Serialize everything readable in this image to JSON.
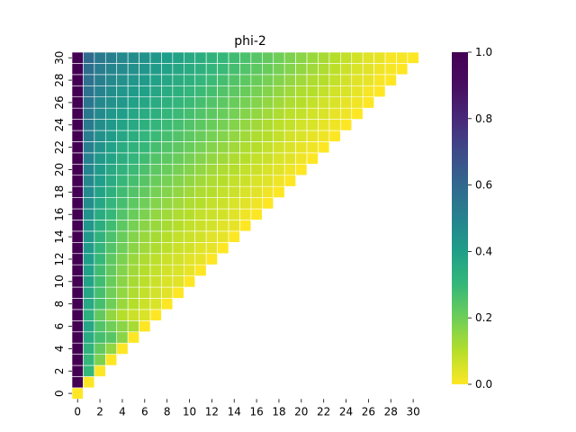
{
  "chart_data": {
    "type": "heatmap",
    "title": "phi-2",
    "xlabel": "",
    "ylabel": "",
    "n": 31,
    "x_tick_labels": [
      "0",
      "2",
      "4",
      "6",
      "8",
      "10",
      "12",
      "14",
      "16",
      "18",
      "20",
      "22",
      "24",
      "26",
      "28",
      "30"
    ],
    "y_tick_labels": [
      "0",
      "2",
      "4",
      "6",
      "8",
      "10",
      "12",
      "14",
      "16",
      "18",
      "20",
      "22",
      "24",
      "26",
      "28",
      "30"
    ],
    "colormap": "viridis_r",
    "vmin": 0.0,
    "vmax": 1.0,
    "colorbar_tick_labels": [
      "0.0",
      "0.2",
      "0.4",
      "0.6",
      "0.8",
      "1.0"
    ],
    "mask": "upper-triangle (cell shown only when column <= row)",
    "rows": [
      [
        0.0
      ],
      [
        1.0,
        0.0
      ],
      [
        1.0,
        0.3,
        0.0
      ],
      [
        1.0,
        0.3,
        0.18,
        0.0
      ],
      [
        1.0,
        0.32,
        0.22,
        0.15,
        0.0
      ],
      [
        1.0,
        0.35,
        0.27,
        0.24,
        0.16,
        0.0
      ],
      [
        1.0,
        0.37,
        0.25,
        0.2,
        0.16,
        0.12,
        0.0
      ],
      [
        1.0,
        0.33,
        0.22,
        0.15,
        0.1,
        0.07,
        0.05,
        0.0
      ],
      [
        1.0,
        0.36,
        0.27,
        0.2,
        0.14,
        0.1,
        0.07,
        0.05,
        0.0
      ],
      [
        1.0,
        0.37,
        0.27,
        0.2,
        0.15,
        0.11,
        0.08,
        0.06,
        0.04,
        0.0
      ],
      [
        1.0,
        0.38,
        0.28,
        0.21,
        0.16,
        0.12,
        0.09,
        0.07,
        0.05,
        0.04,
        0.0
      ],
      [
        1.0,
        0.39,
        0.28,
        0.22,
        0.17,
        0.13,
        0.1,
        0.08,
        0.06,
        0.05,
        0.03,
        0.0
      ],
      [
        1.0,
        0.4,
        0.3,
        0.23,
        0.18,
        0.14,
        0.11,
        0.09,
        0.07,
        0.06,
        0.04,
        0.03,
        0.0
      ],
      [
        1.0,
        0.41,
        0.31,
        0.25,
        0.2,
        0.16,
        0.13,
        0.11,
        0.09,
        0.07,
        0.06,
        0.04,
        0.03,
        0.0
      ],
      [
        1.0,
        0.42,
        0.32,
        0.26,
        0.21,
        0.17,
        0.14,
        0.12,
        0.1,
        0.08,
        0.07,
        0.06,
        0.04,
        0.03,
        0.0
      ],
      [
        1.0,
        0.43,
        0.34,
        0.28,
        0.23,
        0.19,
        0.16,
        0.14,
        0.12,
        0.1,
        0.08,
        0.07,
        0.06,
        0.04,
        0.03,
        0.0
      ],
      [
        1.0,
        0.44,
        0.35,
        0.3,
        0.25,
        0.21,
        0.18,
        0.15,
        0.13,
        0.11,
        0.1,
        0.08,
        0.07,
        0.06,
        0.04,
        0.02,
        0.0
      ],
      [
        1.0,
        0.46,
        0.37,
        0.31,
        0.27,
        0.23,
        0.2,
        0.17,
        0.15,
        0.13,
        0.11,
        0.1,
        0.08,
        0.07,
        0.05,
        0.04,
        0.02,
        0.0
      ],
      [
        1.0,
        0.47,
        0.38,
        0.33,
        0.28,
        0.25,
        0.22,
        0.19,
        0.17,
        0.15,
        0.13,
        0.11,
        0.1,
        0.08,
        0.07,
        0.05,
        0.04,
        0.02,
        0.0
      ],
      [
        1.0,
        0.48,
        0.4,
        0.35,
        0.3,
        0.27,
        0.24,
        0.21,
        0.19,
        0.17,
        0.15,
        0.13,
        0.11,
        0.1,
        0.08,
        0.07,
        0.05,
        0.04,
        0.02,
        0.0
      ],
      [
        1.0,
        0.49,
        0.41,
        0.36,
        0.32,
        0.29,
        0.26,
        0.23,
        0.21,
        0.19,
        0.17,
        0.15,
        0.13,
        0.11,
        0.1,
        0.08,
        0.07,
        0.05,
        0.04,
        0.02,
        0.0
      ],
      [
        1.0,
        0.5,
        0.42,
        0.38,
        0.34,
        0.31,
        0.28,
        0.25,
        0.23,
        0.21,
        0.19,
        0.17,
        0.15,
        0.13,
        0.11,
        0.1,
        0.08,
        0.07,
        0.05,
        0.04,
        0.02,
        0.0
      ],
      [
        1.0,
        0.51,
        0.44,
        0.39,
        0.35,
        0.32,
        0.3,
        0.27,
        0.25,
        0.23,
        0.21,
        0.19,
        0.17,
        0.15,
        0.13,
        0.11,
        0.1,
        0.08,
        0.06,
        0.05,
        0.03,
        0.02,
        0.0
      ],
      [
        1.0,
        0.52,
        0.45,
        0.41,
        0.37,
        0.34,
        0.31,
        0.29,
        0.27,
        0.25,
        0.23,
        0.21,
        0.19,
        0.17,
        0.15,
        0.13,
        0.11,
        0.1,
        0.08,
        0.06,
        0.05,
        0.03,
        0.02,
        0.0
      ],
      [
        1.0,
        0.53,
        0.46,
        0.42,
        0.38,
        0.36,
        0.33,
        0.31,
        0.29,
        0.27,
        0.25,
        0.23,
        0.21,
        0.19,
        0.17,
        0.15,
        0.13,
        0.11,
        0.09,
        0.08,
        0.06,
        0.05,
        0.03,
        0.02,
        0.0
      ],
      [
        1.0,
        0.54,
        0.47,
        0.43,
        0.4,
        0.37,
        0.35,
        0.33,
        0.31,
        0.29,
        0.27,
        0.25,
        0.23,
        0.21,
        0.19,
        0.17,
        0.15,
        0.13,
        0.11,
        0.09,
        0.08,
        0.06,
        0.05,
        0.03,
        0.02,
        0.0
      ],
      [
        1.0,
        0.55,
        0.48,
        0.45,
        0.42,
        0.39,
        0.37,
        0.35,
        0.33,
        0.31,
        0.29,
        0.27,
        0.25,
        0.23,
        0.21,
        0.19,
        0.17,
        0.15,
        0.13,
        0.11,
        0.1,
        0.08,
        0.06,
        0.05,
        0.03,
        0.02,
        0.0
      ],
      [
        1.0,
        0.56,
        0.5,
        0.46,
        0.43,
        0.41,
        0.39,
        0.37,
        0.35,
        0.33,
        0.31,
        0.29,
        0.27,
        0.25,
        0.23,
        0.21,
        0.19,
        0.17,
        0.15,
        0.13,
        0.11,
        0.1,
        0.08,
        0.06,
        0.05,
        0.03,
        0.01,
        0.0
      ],
      [
        1.0,
        0.57,
        0.51,
        0.48,
        0.45,
        0.43,
        0.41,
        0.39,
        0.37,
        0.35,
        0.33,
        0.31,
        0.29,
        0.27,
        0.25,
        0.23,
        0.21,
        0.19,
        0.17,
        0.15,
        0.13,
        0.11,
        0.1,
        0.08,
        0.06,
        0.04,
        0.03,
        0.01,
        0.0
      ],
      [
        1.0,
        0.58,
        0.52,
        0.49,
        0.47,
        0.45,
        0.43,
        0.41,
        0.39,
        0.37,
        0.35,
        0.33,
        0.31,
        0.29,
        0.27,
        0.25,
        0.23,
        0.21,
        0.19,
        0.17,
        0.15,
        0.13,
        0.11,
        0.09,
        0.07,
        0.05,
        0.04,
        0.02,
        0.01,
        0.0
      ],
      [
        1.0,
        0.59,
        0.53,
        0.51,
        0.48,
        0.46,
        0.44,
        0.42,
        0.4,
        0.38,
        0.36,
        0.34,
        0.32,
        0.3,
        0.28,
        0.26,
        0.24,
        0.22,
        0.2,
        0.18,
        0.16,
        0.14,
        0.12,
        0.1,
        0.08,
        0.06,
        0.04,
        0.03,
        0.01,
        0.01,
        0.0
      ]
    ]
  }
}
